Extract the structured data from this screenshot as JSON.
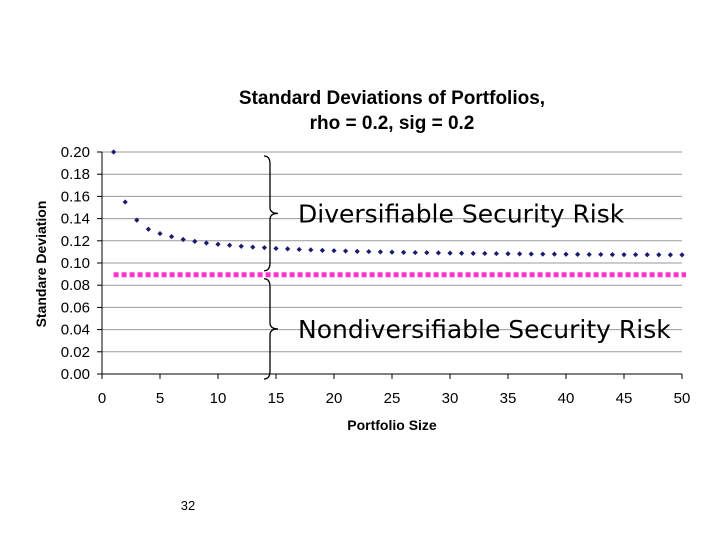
{
  "colors": {
    "series": "#1a1a6e",
    "reference_line": "#ff33cc",
    "grid": "#999999",
    "axis": "#000000"
  },
  "chart_data": {
    "type": "scatter",
    "title_line1": "Standard Deviations of Portfolios,",
    "title_line2": "rho = 0.2, sig = 0.2",
    "xlabel": "Portfolio Size",
    "ylabel": "Standare Deviation",
    "xlim": [
      0,
      50
    ],
    "ylim": [
      0,
      0.2
    ],
    "x_ticks": [
      "0",
      "5",
      "10",
      "15",
      "20",
      "25",
      "30",
      "35",
      "40",
      "45",
      "50"
    ],
    "y_ticks": [
      "0.00",
      "0.02",
      "0.04",
      "0.06",
      "0.08",
      "0.10",
      "0.12",
      "0.14",
      "0.16",
      "0.18",
      "0.20"
    ],
    "grid": "horizontal",
    "series": [
      {
        "x": [
          1,
          2,
          3,
          4,
          5,
          6,
          7,
          8,
          9,
          10,
          11,
          12,
          13,
          14,
          15,
          16,
          17,
          18,
          19,
          20,
          21,
          22,
          23,
          24,
          25,
          26,
          27,
          28,
          29,
          30,
          31,
          32,
          33,
          34,
          35,
          36,
          37,
          38,
          39,
          40,
          41,
          42,
          43,
          44,
          45,
          46,
          47,
          48,
          49,
          50
        ],
        "values": [
          0.2,
          0.1549,
          0.1386,
          0.1304,
          0.1265,
          0.1238,
          0.1212,
          0.1195,
          0.118,
          0.1169,
          0.116,
          0.1151,
          0.1143,
          0.1138,
          0.1131,
          0.1127,
          0.1122,
          0.1118,
          0.1114,
          0.1111,
          0.1108,
          0.1105,
          0.1103,
          0.11,
          0.1098,
          0.1096,
          0.1094,
          0.1093,
          0.1091,
          0.1089,
          0.1088,
          0.1087,
          0.1086,
          0.1085,
          0.1083,
          0.1082,
          0.1081,
          0.108,
          0.108,
          0.1079,
          0.1078,
          0.1077,
          0.1077,
          0.1076,
          0.1075,
          0.1075,
          0.1074,
          0.1074,
          0.1073,
          0.1073
        ]
      }
    ],
    "reference_line": {
      "y": 0.0894,
      "style": "dotted"
    },
    "annotations": [
      {
        "text": "Diversifiable Security Risk",
        "y_from": 0.2,
        "y_to": 0.0894
      },
      {
        "text": "Nondiversifiable Security Risk",
        "y_from": 0.0894,
        "y_to": 0.0
      }
    ]
  },
  "page_number": "32"
}
